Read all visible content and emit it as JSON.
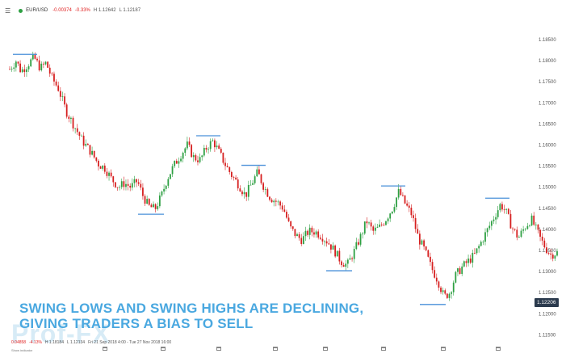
{
  "header": {
    "menu_icon": "hamburger-icon",
    "status_color": "#2ea043",
    "symbol": "EUR/USD",
    "change": "-0.00374",
    "change_pct": "-0.33%",
    "high": "H 1.12642",
    "low": "L 1.12187"
  },
  "caption": {
    "line1": "SWING LOWS AND SWING HIGHS ARE DECLINING,",
    "line2": "GIVING TRADERS A BIAS TO SELL"
  },
  "price_tag": "1.12206",
  "watermark": "Prof-FX",
  "status": {
    "value": "0.04858",
    "pct": "-4.13%",
    "high": "H 1.18184",
    "low": "L 1.12134",
    "range": "Fri 21 Sep 2018 4:00 - Tue 27 Nov 2018 16:00"
  },
  "indicator_label": "Show indicator",
  "colors": {
    "up": "#2ea043",
    "down": "#d62020",
    "swing": "#4a90d9",
    "caption": "#4aa8e0"
  },
  "chart_data": {
    "type": "candlestick",
    "y_ticks": [
      "1.18500",
      "1.18000",
      "1.17500",
      "1.17000",
      "1.16500",
      "1.16000",
      "1.15500",
      "1.15000",
      "1.14500",
      "1.14000",
      "1.13500",
      "1.13000",
      "1.12500",
      "1.12000",
      "1.11500"
    ],
    "ylim": [
      1.1125,
      1.1885
    ],
    "grid": false,
    "last_price": 1.12206,
    "swing_highs": [
      1.1815,
      1.1622,
      1.1552,
      1.1503,
      1.1474
    ],
    "swing_lows": [
      1.1436,
      1.1302,
      1.1222
    ],
    "path": [
      [
        0,
        1.178
      ],
      [
        8,
        1.18
      ],
      [
        14,
        1.1775
      ],
      [
        22,
        1.179
      ],
      [
        30,
        1.1808
      ],
      [
        38,
        1.1782
      ],
      [
        45,
        1.1795
      ],
      [
        52,
        1.176
      ],
      [
        60,
        1.1735
      ],
      [
        70,
        1.168
      ],
      [
        80,
        1.1645
      ],
      [
        90,
        1.161
      ],
      [
        100,
        1.1585
      ],
      [
        110,
        1.1555
      ],
      [
        118,
        1.1545
      ],
      [
        126,
        1.152
      ],
      [
        135,
        1.15
      ],
      [
        142,
        1.151
      ],
      [
        150,
        1.15
      ],
      [
        158,
        1.1515
      ],
      [
        165,
        1.148
      ],
      [
        172,
        1.1455
      ],
      [
        180,
        1.1448
      ],
      [
        188,
        1.148
      ],
      [
        195,
        1.152
      ],
      [
        203,
        1.155
      ],
      [
        211,
        1.1575
      ],
      [
        220,
        1.16
      ],
      [
        228,
        1.157
      ],
      [
        236,
        1.1565
      ],
      [
        244,
        1.1595
      ],
      [
        252,
        1.161
      ],
      [
        260,
        1.158
      ],
      [
        268,
        1.155
      ],
      [
        276,
        1.1525
      ],
      [
        284,
        1.1505
      ],
      [
        292,
        1.148
      ],
      [
        300,
        1.151
      ],
      [
        307,
        1.1535
      ],
      [
        315,
        1.15
      ],
      [
        323,
        1.1475
      ],
      [
        331,
        1.1465
      ],
      [
        339,
        1.145
      ],
      [
        347,
        1.1405
      ],
      [
        355,
        1.1385
      ],
      [
        362,
        1.1375
      ],
      [
        370,
        1.1395
      ],
      [
        378,
        1.1395
      ],
      [
        386,
        1.1385
      ],
      [
        394,
        1.137
      ],
      [
        402,
        1.135
      ],
      [
        410,
        1.1325
      ],
      [
        418,
        1.1315
      ],
      [
        426,
        1.1345
      ],
      [
        434,
        1.138
      ],
      [
        442,
        1.142
      ],
      [
        450,
        1.1395
      ],
      [
        458,
        1.1405
      ],
      [
        466,
        1.1425
      ],
      [
        474,
        1.145
      ],
      [
        482,
        1.149
      ],
      [
        490,
        1.146
      ],
      [
        498,
        1.1435
      ],
      [
        506,
        1.138
      ],
      [
        514,
        1.135
      ],
      [
        522,
        1.131
      ],
      [
        530,
        1.128
      ],
      [
        538,
        1.124
      ],
      [
        545,
        1.125
      ],
      [
        552,
        1.129
      ],
      [
        560,
        1.131
      ],
      [
        568,
        1.1325
      ],
      [
        576,
        1.134
      ],
      [
        584,
        1.137
      ],
      [
        592,
        1.14
      ],
      [
        600,
        1.143
      ],
      [
        608,
        1.146
      ],
      [
        615,
        1.144
      ],
      [
        622,
        1.1405
      ],
      [
        630,
        1.138
      ],
      [
        638,
        1.1405
      ],
      [
        646,
        1.1425
      ],
      [
        652,
        1.14
      ],
      [
        658,
        1.1375
      ],
      [
        664,
        1.1355
      ],
      [
        670,
        1.134
      ],
      [
        678,
        1.1345
      ],
      [
        686,
        1.1325
      ],
      [
        690,
        1.1295
      ]
    ]
  }
}
